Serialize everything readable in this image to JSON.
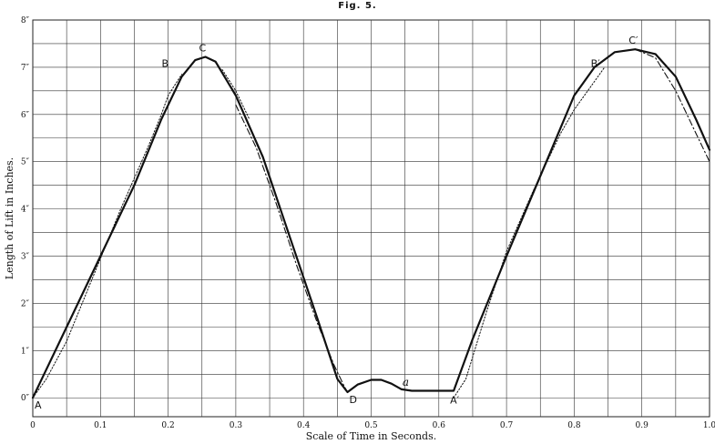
{
  "figure_title": "Fig. 5.",
  "chart_data": {
    "type": "line",
    "xlabel": "Scale of Time in Seconds.",
    "ylabel": "Length of Lift in Inches.",
    "xlim": [
      0,
      1.0
    ],
    "ylim": [
      -0.4,
      8
    ],
    "x_ticks": [
      {
        "v": 0,
        "t": "0"
      },
      {
        "v": 0.1,
        "t": "0.1"
      },
      {
        "v": 0.2,
        "t": "0.2"
      },
      {
        "v": 0.3,
        "t": "0.3"
      },
      {
        "v": 0.4,
        "t": "0.4"
      },
      {
        "v": 0.5,
        "t": "0.5"
      },
      {
        "v": 0.6,
        "t": "0.6"
      },
      {
        "v": 0.7,
        "t": "0.7"
      },
      {
        "v": 0.8,
        "t": "0.8"
      },
      {
        "v": 0.9,
        "t": "0.9"
      },
      {
        "v": 1.0,
        "t": "1.0"
      }
    ],
    "y_ticks": [
      {
        "v": 0,
        "t": "0″"
      },
      {
        "v": 1,
        "t": "1″"
      },
      {
        "v": 2,
        "t": "2″"
      },
      {
        "v": 3,
        "t": "3″"
      },
      {
        "v": 4,
        "t": "4″"
      },
      {
        "v": 5,
        "t": "5″"
      },
      {
        "v": 6,
        "t": "6″"
      },
      {
        "v": 7,
        "t": "7″"
      },
      {
        "v": 8,
        "t": "8″"
      }
    ],
    "grid": true,
    "series": [
      {
        "style": "solid",
        "x": [
          0.0,
          0.05,
          0.1,
          0.15,
          0.19,
          0.22,
          0.24,
          0.255,
          0.27,
          0.3,
          0.34,
          0.38,
          0.42,
          0.45,
          0.465,
          0.48,
          0.5,
          0.515,
          0.53,
          0.545,
          0.56,
          0.58,
          0.6,
          0.622,
          0.65,
          0.7,
          0.75,
          0.8,
          0.83,
          0.86,
          0.89,
          0.92,
          0.95,
          0.98,
          1.0
        ],
        "y": [
          0.0,
          1.5,
          3.0,
          4.5,
          5.9,
          6.8,
          7.15,
          7.22,
          7.12,
          6.4,
          5.1,
          3.4,
          1.7,
          0.4,
          0.12,
          0.28,
          0.38,
          0.38,
          0.3,
          0.18,
          0.15,
          0.15,
          0.15,
          0.15,
          1.25,
          3.0,
          4.7,
          6.4,
          7.0,
          7.32,
          7.38,
          7.28,
          6.8,
          5.9,
          5.25
        ]
      },
      {
        "style": "dash-dot",
        "x": [
          0.3,
          0.33,
          0.36,
          0.39,
          0.42,
          0.445,
          0.46,
          0.465
        ],
        "y": [
          6.2,
          5.3,
          4.1,
          2.8,
          1.6,
          0.7,
          0.25,
          0.12
        ]
      },
      {
        "style": "dash-dot",
        "x": [
          0.89,
          0.92,
          0.95,
          0.98,
          1.0
        ],
        "y": [
          7.38,
          7.2,
          6.5,
          5.6,
          5.0
        ]
      },
      {
        "style": "dotted",
        "x": [
          0.0,
          0.02,
          0.05,
          0.09,
          0.13,
          0.17,
          0.19,
          0.2,
          0.22
        ],
        "y": [
          0.0,
          0.4,
          1.2,
          2.6,
          4.0,
          5.3,
          6.0,
          6.4,
          6.85
        ]
      },
      {
        "style": "dotted",
        "x": [
          0.28,
          0.3,
          0.32
        ],
        "y": [
          6.95,
          6.5,
          5.9
        ]
      },
      {
        "style": "dotted",
        "x": [
          0.622,
          0.64,
          0.67,
          0.7,
          0.74,
          0.78,
          0.8,
          0.83,
          0.845
        ],
        "y": [
          0.0,
          0.4,
          1.8,
          3.1,
          4.4,
          5.6,
          6.1,
          6.7,
          7.0
        ]
      }
    ],
    "point_labels": [
      {
        "text": "A",
        "x": 0.0,
        "y": 0.0,
        "pos": "below-right",
        "style": "normal"
      },
      {
        "text": "B",
        "x": 0.208,
        "y": 6.95,
        "pos": "left",
        "style": "normal"
      },
      {
        "text": "C",
        "x": 0.255,
        "y": 7.22,
        "pos": "above-left",
        "style": "normal"
      },
      {
        "text": "D",
        "x": 0.465,
        "y": 0.12,
        "pos": "below-right",
        "style": "normal"
      },
      {
        "text": "a",
        "x": 0.545,
        "y": 0.18,
        "pos": "above-right",
        "style": "italic"
      },
      {
        "text": "A′",
        "x": 0.622,
        "y": 0.15,
        "pos": "below",
        "style": "normal"
      },
      {
        "text": "B′",
        "x": 0.842,
        "y": 6.95,
        "pos": "left",
        "style": "normal"
      },
      {
        "text": "C′",
        "x": 0.89,
        "y": 7.38,
        "pos": "above-left",
        "style": "normal"
      }
    ]
  }
}
